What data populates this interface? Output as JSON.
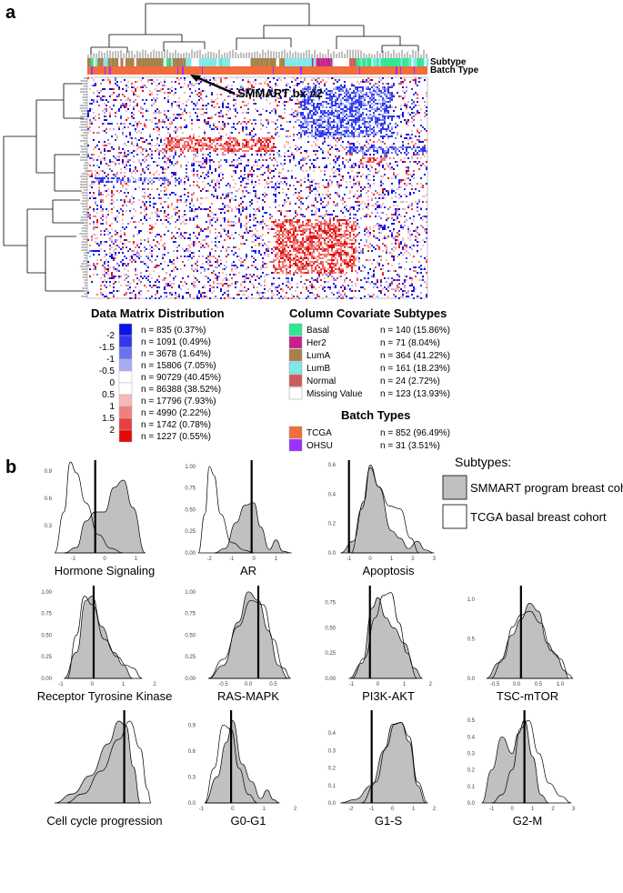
{
  "panel_labels": {
    "a": "a",
    "b": "b"
  },
  "heatmap": {
    "track_labels": {
      "subtype": "Subtype",
      "batch": "Batch Type"
    },
    "annotation": "SMMART bx #2",
    "n_columns": 883,
    "subtype_colors": {
      "Basal": "#2ee88f",
      "Her2": "#c8208a",
      "LumA": "#a6804a",
      "LumB": "#7fe8e8",
      "Normal": "#cd5c5c",
      "Missing Value": "#ffffff"
    },
    "batch_colors": {
      "TCGA": "#f26c3c",
      "OHSU": "#9b30ff"
    }
  },
  "legend_matrix": {
    "title": "Data Matrix Distribution",
    "tick_labels": [
      "-2",
      "-1.5",
      "-1",
      "-0.5",
      "0",
      "0.5",
      "1",
      "1.5",
      "2"
    ],
    "bins": [
      {
        "label": "n = 835 (0.37%)",
        "color": "#0b12e6"
      },
      {
        "label": "n = 1091 (0.49%)",
        "color": "#3039ea"
      },
      {
        "label": "n = 3678 (1.64%)",
        "color": "#6b72f0"
      },
      {
        "label": "n = 15806 (7.05%)",
        "color": "#a7abf6"
      },
      {
        "label": "n = 90729 (40.45%)",
        "color": "#ffffff"
      },
      {
        "label": "n = 86388 (38.52%)",
        "color": "#ffffff"
      },
      {
        "label": "n = 17796 (7.93%)",
        "color": "#f7b8b8"
      },
      {
        "label": "n = 4990 (2.22%)",
        "color": "#f07f7f"
      },
      {
        "label": "n = 1742 (0.78%)",
        "color": "#e84040"
      },
      {
        "label": "n = 1227 (0.55%)",
        "color": "#e20b0b"
      }
    ]
  },
  "legend_subtypes": {
    "title": "Column Covariate Subtypes",
    "items": [
      {
        "name": "Basal",
        "count": "n = 140 (15.86%)",
        "color": "#2ee88f"
      },
      {
        "name": "Her2",
        "count": "n = 71 (8.04%)",
        "color": "#c8208a"
      },
      {
        "name": "LumA",
        "count": "n = 364 (41.22%)",
        "color": "#a6804a"
      },
      {
        "name": "LumB",
        "count": "n = 161 (18.23%)",
        "color": "#7fe8e8"
      },
      {
        "name": "Normal",
        "count": "n = 24 (2.72%)",
        "color": "#cd5c5c"
      },
      {
        "name": "Missing Value",
        "count": "n = 123 (13.93%)",
        "color": "#ffffff"
      }
    ]
  },
  "legend_batch": {
    "title": "Batch Types",
    "items": [
      {
        "name": "TCGA",
        "count": "n = 852 (96.49%)",
        "color": "#f26c3c"
      },
      {
        "name": "OHSU",
        "count": "n = 31 (3.51%)",
        "color": "#9b30ff"
      }
    ]
  },
  "density_legend": {
    "title": "Subtypes:",
    "items": [
      {
        "name": "SMMART program breast cohort",
        "fill": "#c0c0c0"
      },
      {
        "name": "TCGA basal breast cohort",
        "fill": "#ffffff"
      }
    ]
  },
  "chart_data": [
    {
      "type": "area",
      "title": "Hormone Signaling",
      "xlim": [
        -1.6,
        1.6
      ],
      "ylim": [
        0,
        1.0
      ],
      "xticks": [
        "-1",
        "0",
        "1"
      ],
      "yticks": [
        "0.3",
        "0.6",
        "0.9"
      ],
      "series": [
        {
          "name": "SMMART program breast cohort",
          "x": [
            -1.3,
            -0.9,
            -0.6,
            -0.3,
            0.0,
            0.3,
            0.6,
            0.9,
            1.3
          ],
          "y": [
            0,
            0.06,
            0.35,
            0.45,
            0.45,
            0.72,
            0.8,
            0.5,
            0
          ]
        },
        {
          "name": "TCGA basal breast cohort",
          "x": [
            -1.6,
            -1.3,
            -1.1,
            -0.9,
            -0.6,
            -0.2,
            0.2,
            0.6
          ],
          "y": [
            0,
            0.45,
            1.0,
            0.88,
            0.55,
            0.2,
            0.05,
            0
          ]
        }
      ],
      "vline": -0.3
    },
    {
      "type": "area",
      "title": "AR",
      "xlim": [
        -2.5,
        2.0
      ],
      "ylim": [
        0,
        1.05
      ],
      "xticks": [
        "-2",
        "-1",
        "0",
        "1"
      ],
      "yticks": [
        "0.00",
        "0.25",
        "0.50",
        "0.75",
        "1.00"
      ],
      "series": [
        {
          "name": "SMMART program breast cohort",
          "x": [
            -1.8,
            -1.3,
            -0.8,
            -0.4,
            0.0,
            0.3,
            0.7,
            1.0,
            1.3,
            1.7
          ],
          "y": [
            0,
            0.05,
            0.35,
            0.55,
            0.58,
            0.3,
            0.04,
            0.15,
            0.02,
            0
          ]
        },
        {
          "name": "TCGA basal breast cohort",
          "x": [
            -2.5,
            -2.2,
            -2.0,
            -1.8,
            -1.5,
            -1.0,
            -0.4,
            0.0
          ],
          "y": [
            0,
            0.45,
            1.0,
            0.9,
            0.45,
            0.12,
            0.03,
            0
          ]
        }
      ],
      "vline": -0.1
    },
    {
      "type": "area",
      "title": "Apoptosis",
      "xlim": [
        -1.5,
        3.2
      ],
      "ylim": [
        0,
        0.62
      ],
      "xticks": [
        "-1",
        "0",
        "1",
        "2",
        "3"
      ],
      "yticks": [
        "0.0",
        "0.2",
        "0.4",
        "0.6"
      ],
      "series": [
        {
          "name": "SMMART program breast cohort",
          "x": [
            -1.4,
            -0.8,
            -0.3,
            0.0,
            0.4,
            1.0,
            1.4,
            1.8,
            2.2,
            2.6,
            3.0
          ],
          "y": [
            0,
            0.08,
            0.35,
            0.6,
            0.45,
            0.15,
            0.1,
            0.03,
            0.08,
            0.02,
            0
          ]
        },
        {
          "name": "TCGA basal breast cohort",
          "x": [
            -0.9,
            -0.4,
            0.0,
            0.4,
            0.9,
            1.4,
            1.9,
            2.3
          ],
          "y": [
            0,
            0.3,
            0.58,
            0.45,
            0.32,
            0.3,
            0.1,
            0
          ]
        }
      ],
      "vline": -1.0
    },
    {
      "type": "area",
      "title": "Receptor Tyrosine Kinase",
      "xlim": [
        -1.2,
        2.0
      ],
      "ylim": [
        0,
        1.05
      ],
      "xticks": [
        "-1",
        "0",
        "1",
        "2"
      ],
      "yticks": [
        "0.00",
        "0.25",
        "0.50",
        "0.75",
        "1.00"
      ],
      "series": [
        {
          "name": "SMMART program breast cohort",
          "x": [
            -0.9,
            -0.5,
            -0.2,
            0.0,
            0.3,
            0.7,
            1.0,
            1.3
          ],
          "y": [
            0,
            0.3,
            0.9,
            0.95,
            0.6,
            0.3,
            0.15,
            0
          ]
        },
        {
          "name": "TCGA basal breast cohort",
          "x": [
            -0.8,
            -0.5,
            -0.25,
            0.0,
            0.4,
            0.8,
            1.1,
            1.3,
            1.6
          ],
          "y": [
            0,
            0.5,
            0.95,
            0.85,
            0.45,
            0.25,
            0.15,
            0.12,
            0
          ]
        }
      ],
      "vline": 0.05
    },
    {
      "type": "area",
      "title": "RAS-MAPK",
      "xlim": [
        -1.0,
        1.0
      ],
      "ylim": [
        0,
        1.05
      ],
      "xticks": [
        "-0.5",
        "0.0",
        "0.5"
      ],
      "yticks": [
        "0.00",
        "0.25",
        "0.50",
        "0.75",
        "1.00"
      ],
      "series": [
        {
          "name": "SMMART program breast cohort",
          "x": [
            -0.8,
            -0.5,
            -0.2,
            0.0,
            0.2,
            0.4,
            0.6,
            0.8
          ],
          "y": [
            0,
            0.15,
            0.65,
            1.0,
            0.9,
            0.55,
            0.15,
            0
          ]
        },
        {
          "name": "TCGA basal breast cohort",
          "x": [
            -0.8,
            -0.5,
            -0.2,
            0.05,
            0.3,
            0.5,
            0.7,
            0.85
          ],
          "y": [
            0,
            0.22,
            0.6,
            0.9,
            0.85,
            0.45,
            0.12,
            0
          ]
        }
      ],
      "vline": 0.2
    },
    {
      "type": "area",
      "title": "PI3K-AKT",
      "xlim": [
        -1.5,
        2.3
      ],
      "ylim": [
        0,
        0.9
      ],
      "xticks": [
        "-1",
        "0",
        "1",
        "2"
      ],
      "yticks": [
        "0.00",
        "0.25",
        "0.50",
        "0.75"
      ],
      "series": [
        {
          "name": "SMMART program breast cohort",
          "x": [
            -1.1,
            -0.6,
            -0.2,
            0.0,
            0.3,
            0.6,
            1.0,
            1.4,
            1.7
          ],
          "y": [
            0,
            0.15,
            0.7,
            0.8,
            0.6,
            0.5,
            0.35,
            0.1,
            0
          ]
        },
        {
          "name": "TCGA basal breast cohort",
          "x": [
            -1.0,
            -0.5,
            -0.1,
            0.2,
            0.5,
            0.8,
            1.1,
            1.5
          ],
          "y": [
            0,
            0.2,
            0.6,
            0.82,
            0.85,
            0.55,
            0.25,
            0
          ]
        }
      ],
      "vline": -0.3
    },
    {
      "type": "area",
      "title": "TSC-mTOR",
      "xlim": [
        -0.9,
        1.4
      ],
      "ylim": [
        0,
        1.15
      ],
      "xticks": [
        "-0.5",
        "0.0",
        "0.5",
        "1.0"
      ],
      "yticks": [
        "0.0",
        "0.5",
        "1.0"
      ],
      "series": [
        {
          "name": "SMMART program breast cohort",
          "x": [
            -0.7,
            -0.4,
            -0.1,
            0.1,
            0.3,
            0.5,
            0.7,
            0.9,
            1.1,
            1.2
          ],
          "y": [
            0,
            0.2,
            0.55,
            0.75,
            0.95,
            0.85,
            0.45,
            0.3,
            0.1,
            0
          ]
        },
        {
          "name": "TCGA basal breast cohort",
          "x": [
            -0.6,
            -0.3,
            -0.1,
            0.1,
            0.3,
            0.55,
            0.8,
            1.0,
            1.2,
            1.3
          ],
          "y": [
            0,
            0.25,
            0.65,
            0.8,
            0.85,
            0.7,
            0.35,
            0.25,
            0.05,
            0
          ]
        }
      ],
      "vline": 0.1
    },
    {
      "type": "area",
      "title": "Cell cycle progression",
      "xlim": [
        -1.5,
        1.3
      ],
      "ylim": [
        0,
        1.0
      ],
      "xticks": [],
      "yticks": [],
      "series": [
        {
          "name": "SMMART program breast cohort",
          "x": [
            -1.5,
            -1.0,
            -0.5,
            0.0,
            0.3,
            0.5,
            0.7,
            0.9
          ],
          "y": [
            0,
            0.1,
            0.3,
            0.65,
            0.9,
            0.85,
            0.4,
            0
          ]
        },
        {
          "name": "TCGA basal breast cohort",
          "x": [
            -1.2,
            -0.7,
            -0.2,
            0.3,
            0.6,
            0.9,
            1.1,
            1.2
          ],
          "y": [
            0,
            0.1,
            0.35,
            0.7,
            0.9,
            0.6,
            0.15,
            0
          ]
        }
      ],
      "vline": 0.45
    },
    {
      "type": "area",
      "title": "G0-G1",
      "xlim": [
        -1.1,
        2.1
      ],
      "ylim": [
        0,
        1.05
      ],
      "xticks": [
        "-1",
        "0",
        "1",
        "2"
      ],
      "yticks": [
        "0.0",
        "0.3",
        "0.6",
        "0.9"
      ],
      "series": [
        {
          "name": "SMMART program breast cohort",
          "x": [
            -0.9,
            -0.5,
            -0.2,
            0.0,
            0.3,
            0.6,
            0.9,
            1.1,
            1.3,
            1.5
          ],
          "y": [
            0,
            0.3,
            0.7,
            0.95,
            0.45,
            0.25,
            0.05,
            0.15,
            0.04,
            0
          ]
        },
        {
          "name": "TCGA basal breast cohort",
          "x": [
            -0.9,
            -0.6,
            -0.3,
            -0.05,
            0.2,
            0.5,
            0.8
          ],
          "y": [
            0,
            0.4,
            0.9,
            0.85,
            0.4,
            0.1,
            0
          ]
        }
      ],
      "vline": -0.05
    },
    {
      "type": "area",
      "title": "G1-S",
      "xlim": [
        -2.6,
        2.2
      ],
      "ylim": [
        0,
        0.52
      ],
      "xticks": [
        "-2",
        "-1",
        "0",
        "1",
        "2"
      ],
      "yticks": [
        "0.0",
        "0.1",
        "0.2",
        "0.3",
        "0.4"
      ],
      "series": [
        {
          "name": "SMMART program breast cohort",
          "x": [
            -2.5,
            -1.8,
            -1.0,
            -0.4,
            0.0,
            0.4,
            0.8,
            1.2,
            1.6
          ],
          "y": [
            0,
            0.02,
            0.1,
            0.3,
            0.45,
            0.46,
            0.35,
            0.1,
            0
          ]
        },
        {
          "name": "TCGA basal breast cohort",
          "x": [
            -1.5,
            -0.8,
            -0.3,
            0.1,
            0.4,
            0.8,
            1.2,
            1.7
          ],
          "y": [
            0,
            0.12,
            0.32,
            0.45,
            0.46,
            0.38,
            0.12,
            0
          ]
        }
      ],
      "vline": -1.0
    },
    {
      "type": "area",
      "title": "G2-M",
      "xlim": [
        -1.7,
        3.2
      ],
      "ylim": [
        0,
        0.55
      ],
      "xticks": [
        "-1",
        "0",
        "1",
        "2",
        "3"
      ],
      "yticks": [
        "0.0",
        "0.1",
        "0.2",
        "0.3",
        "0.4",
        "0.5"
      ],
      "series": [
        {
          "name": "SMMART program breast cohort",
          "x": [
            -1.5,
            -1.0,
            -0.5,
            0.0,
            0.3,
            0.6,
            1.0,
            1.4,
            1.8
          ],
          "y": [
            0,
            0.2,
            0.4,
            0.3,
            0.42,
            0.5,
            0.28,
            0.05,
            0
          ]
        },
        {
          "name": "TCGA basal breast cohort",
          "x": [
            -1.0,
            -0.5,
            0.0,
            0.4,
            0.8,
            1.3,
            1.8,
            2.4,
            2.9
          ],
          "y": [
            0,
            0.05,
            0.2,
            0.45,
            0.5,
            0.3,
            0.12,
            0.04,
            0
          ]
        }
      ],
      "vline": 0.6
    }
  ]
}
